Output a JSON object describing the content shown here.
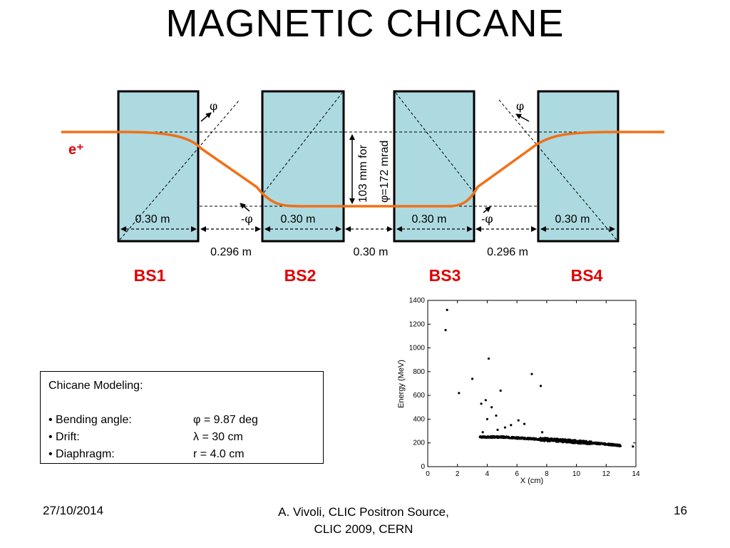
{
  "title": "MAGNETIC  CHICANE",
  "particle_label": "e⁺",
  "magnets": [
    {
      "name": "BS1",
      "length_label": "0.30 m"
    },
    {
      "name": "BS2",
      "length_label": "0.30 m"
    },
    {
      "name": "BS3",
      "length_label": "0.30 m"
    },
    {
      "name": "BS4",
      "length_label": "0.30 m"
    }
  ],
  "drifts": [
    "0.296 m",
    "0.30 m",
    "0.296 m"
  ],
  "angle_labels": {
    "phi": "φ",
    "minus_phi": "-φ"
  },
  "offset_label": {
    "line1": "103 mm for",
    "line2": "φ=172 mrad"
  },
  "plot": {
    "xlabel": "X (cm)",
    "ylabel": "Energy (MeV)",
    "x_ticks": [
      "0",
      "2",
      "4",
      "6",
      "8",
      "10",
      "12",
      "14"
    ],
    "y_ticks": [
      "0",
      "200",
      "400",
      "600",
      "800",
      "1000",
      "1200",
      "1400"
    ],
    "xlim": [
      0,
      14
    ],
    "ylim": [
      0,
      1400
    ]
  },
  "chart_data": {
    "type": "scatter",
    "xlabel": "X (cm)",
    "ylabel": "Energy (MeV)",
    "xlim": [
      0,
      14
    ],
    "ylim": [
      0,
      1400
    ],
    "x_ticks": [
      0,
      2,
      4,
      6,
      8,
      10,
      12,
      14
    ],
    "y_ticks": [
      0,
      200,
      400,
      600,
      800,
      1000,
      1200,
      1400
    ],
    "outliers": [
      {
        "x": 1.3,
        "y": 1320
      },
      {
        "x": 1.2,
        "y": 1150
      },
      {
        "x": 4.1,
        "y": 910
      },
      {
        "x": 7.0,
        "y": 780
      },
      {
        "x": 3.0,
        "y": 740
      },
      {
        "x": 7.6,
        "y": 680
      },
      {
        "x": 4.9,
        "y": 640
      },
      {
        "x": 2.1,
        "y": 620
      },
      {
        "x": 3.9,
        "y": 560
      },
      {
        "x": 3.6,
        "y": 530
      },
      {
        "x": 4.3,
        "y": 500
      },
      {
        "x": 4.0,
        "y": 400
      },
      {
        "x": 4.6,
        "y": 430
      },
      {
        "x": 6.1,
        "y": 390
      },
      {
        "x": 6.5,
        "y": 360
      },
      {
        "x": 5.2,
        "y": 330
      },
      {
        "x": 5.6,
        "y": 350
      },
      {
        "x": 3.7,
        "y": 290
      },
      {
        "x": 4.7,
        "y": 310
      },
      {
        "x": 7.7,
        "y": 290
      },
      {
        "x": 13.8,
        "y": 170
      }
    ],
    "dense_band": [
      {
        "x": 3.5,
        "y": 250
      },
      {
        "x": 5.0,
        "y": 250
      },
      {
        "x": 6.0,
        "y": 242
      },
      {
        "x": 7.0,
        "y": 235
      },
      {
        "x": 8.0,
        "y": 228
      },
      {
        "x": 9.0,
        "y": 220
      },
      {
        "x": 10.0,
        "y": 210
      },
      {
        "x": 11.0,
        "y": 200
      },
      {
        "x": 12.0,
        "y": 190
      },
      {
        "x": 13.0,
        "y": 178
      }
    ]
  },
  "info_box": {
    "heading": "Chicane Modeling:",
    "rows": [
      {
        "label": "• Bending angle:",
        "value": "φ = 9.87 deg"
      },
      {
        "label": "• Drift:",
        "value": "λ = 30 cm"
      },
      {
        "label": "• Diaphragm:",
        "value": "r = 4.0 cm"
      }
    ]
  },
  "footer": {
    "date": "27/10/2014",
    "center_line1": "A. Vivoli,  CLIC Positron Source,",
    "center_line2": "CLIC 2009, CERN",
    "page": "16"
  },
  "colors": {
    "magnet_fill": "#acdae0",
    "beam": "#f07018",
    "label_red": "#e00000",
    "ink": "#000000"
  }
}
